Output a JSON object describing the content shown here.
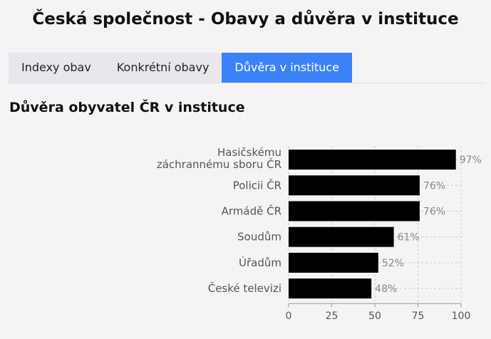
{
  "page": {
    "title": "Česká společnost - Obavy a důvěra v instituce"
  },
  "tabs": [
    {
      "label": "Indexy obav",
      "active": false
    },
    {
      "label": "Konkrétní obavy",
      "active": false
    },
    {
      "label": "Důvěra v instituce",
      "active": true
    }
  ],
  "section": {
    "title": "Důvěra obyvatel ČR v instituce"
  },
  "colors": {
    "bar": "#000000",
    "active_tab": "#3b82f6",
    "grid": "#cccccc"
  },
  "chart_data": {
    "type": "bar",
    "orientation": "horizontal",
    "categories": [
      [
        "Hasičskému",
        "záchrannému sboru ČR"
      ],
      [
        "Policii ČR"
      ],
      [
        "Armádě ČR"
      ],
      [
        "Soudům"
      ],
      [
        "Úřadům"
      ],
      [
        "České televizi"
      ]
    ],
    "values": [
      97,
      76,
      76,
      61,
      52,
      48
    ],
    "value_labels": [
      "97%",
      "76%",
      "76%",
      "61%",
      "52%",
      "48%"
    ],
    "xlim": [
      0,
      100
    ],
    "xticks": [
      0,
      25,
      50,
      75,
      100
    ],
    "grid": true,
    "title": "",
    "xlabel": "",
    "ylabel": ""
  }
}
